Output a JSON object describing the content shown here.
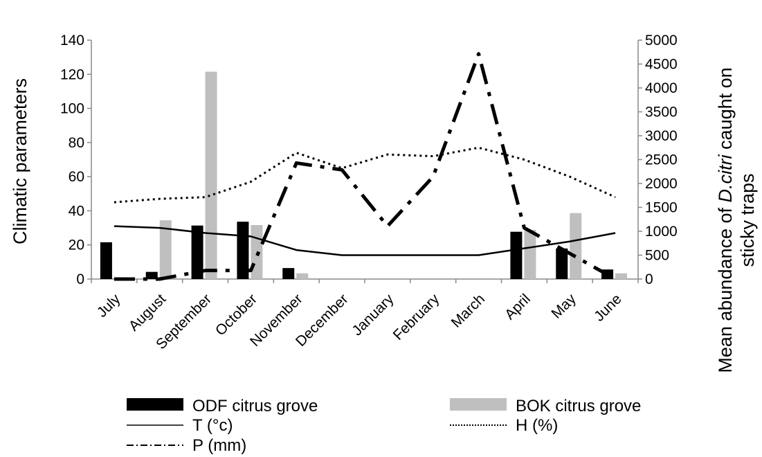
{
  "chart_data": {
    "type": "bar+line",
    "categories": [
      "July",
      "August",
      "September",
      "October",
      "November",
      "December",
      "January",
      "February",
      "March",
      "April",
      "May",
      "June"
    ],
    "y_left": {
      "label": "Climatic parameters",
      "ylim": [
        0,
        140
      ],
      "ticks": [
        0,
        20,
        40,
        60,
        80,
        100,
        120,
        140
      ]
    },
    "y_right": {
      "label_parts": [
        {
          "text": "Mean abundance of ",
          "italic": false
        },
        {
          "text": "D.citri",
          "italic": true
        },
        {
          "text": " caught on",
          "italic": false
        }
      ],
      "label_line2": "sticky traps",
      "ylim": [
        0,
        5000
      ],
      "ticks": [
        0,
        500,
        1000,
        1500,
        2000,
        2500,
        3000,
        3500,
        4000,
        4500,
        5000
      ]
    },
    "series": [
      {
        "name": "ODF citrus grove",
        "kind": "bar",
        "axis": "right",
        "color": "#000000",
        "values": [
          770,
          150,
          1120,
          1200,
          230,
          0,
          0,
          0,
          0,
          990,
          640,
          200
        ]
      },
      {
        "name": "BOK citrus grove",
        "kind": "bar",
        "axis": "right",
        "color": "#bfbfbf",
        "values": [
          0,
          1230,
          4340,
          1130,
          120,
          0,
          0,
          0,
          0,
          1030,
          1380,
          120
        ]
      },
      {
        "name": "T (°c)",
        "kind": "line",
        "axis": "left",
        "style": "solid",
        "values": [
          31,
          30,
          27,
          25,
          17,
          14,
          14,
          14,
          14,
          18,
          22,
          27
        ]
      },
      {
        "name": "H (%)",
        "kind": "line",
        "axis": "left",
        "style": "dotted",
        "values": [
          45,
          47,
          48,
          57,
          74,
          65,
          73,
          72,
          77,
          70,
          60,
          48
        ]
      },
      {
        "name": "P (mm)",
        "kind": "line",
        "axis": "left",
        "style": "dashdot",
        "values": [
          0,
          0,
          5,
          5,
          68,
          64,
          31,
          60,
          132,
          30,
          15,
          0
        ]
      }
    ],
    "legend_placement": "bottom"
  }
}
